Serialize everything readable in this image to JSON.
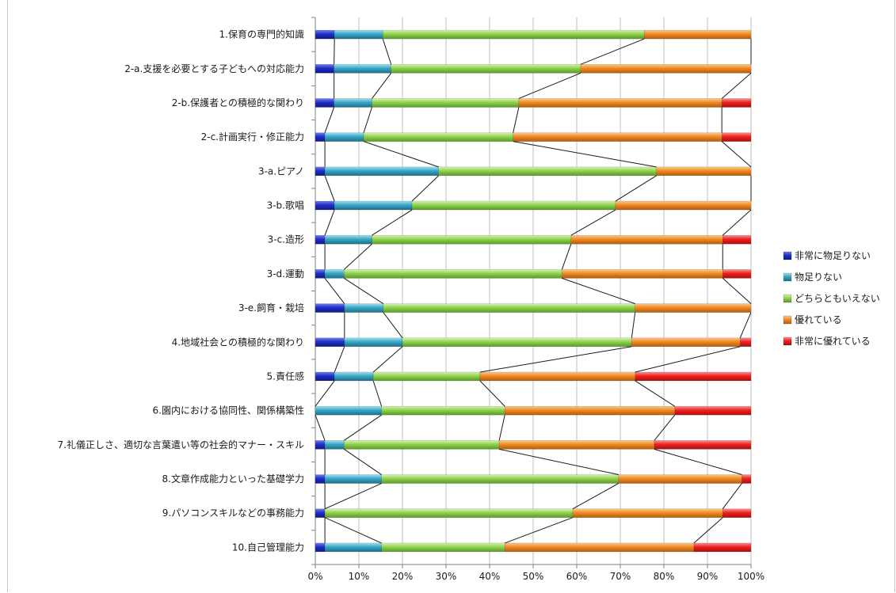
{
  "chart_data": {
    "type": "bar",
    "orientation": "horizontal",
    "stacked": "percent",
    "categories": [
      "1.保育の専門的知識",
      "2-a.支援を必要とする子どもへの対応能力",
      "2-b.保護者との積極的な関わり",
      "2-c.計画実行・修正能力",
      "3-a.ピアノ",
      "3-b.歌唱",
      "3-c.造形",
      "3-d.運動",
      "3-e.飼育・栽培",
      "4.地域社会との積極的な関わり",
      "5.責任感",
      "6.園内における協同性、関係構築性",
      "7.礼儀正しさ、適切な言葉遣い等の社会的マナー・スキル",
      "8.文章作成能力といった基礎学力",
      "9.パソコンスキルなどの事務能力",
      "10.自己管理能力"
    ],
    "series": [
      {
        "name": "非常に物足りない",
        "color": "#1f2fc8",
        "values": [
          4.4,
          4.3,
          4.3,
          2.2,
          2.2,
          4.4,
          2.2,
          2.2,
          6.7,
          6.7,
          4.4,
          0,
          2.2,
          2.2,
          2.2,
          2.2
        ]
      },
      {
        "name": "物足りない",
        "color": "#3aa6c4",
        "values": [
          11.1,
          13.1,
          8.7,
          8.9,
          26.1,
          17.8,
          10.8,
          4.4,
          8.9,
          13.3,
          8.9,
          15.2,
          4.4,
          13.0,
          0,
          13.0
        ]
      },
      {
        "name": "どちらともいえない",
        "color": "#8fd14f",
        "values": [
          60.0,
          43.5,
          33.7,
          34.3,
          50.0,
          46.7,
          45.7,
          50.0,
          57.8,
          52.6,
          24.5,
          28.3,
          35.6,
          54.4,
          56.9,
          28.3
        ]
      },
      {
        "name": "優れている",
        "color": "#f08a24",
        "values": [
          24.5,
          39.1,
          46.6,
          47.9,
          21.7,
          31.1,
          34.8,
          36.9,
          26.6,
          24.9,
          35.6,
          39.0,
          35.6,
          28.3,
          34.4,
          43.4
        ]
      },
      {
        "name": "非常に優れている",
        "color": "#ee2020",
        "values": [
          0,
          0,
          6.7,
          6.7,
          0,
          0,
          6.5,
          6.5,
          0,
          2.5,
          26.6,
          17.5,
          22.2,
          2.1,
          6.5,
          13.1
        ]
      }
    ],
    "xlim": [
      0,
      100
    ],
    "xticks": [
      "0%",
      "10%",
      "20%",
      "30%",
      "40%",
      "50%",
      "60%",
      "70%",
      "80%",
      "90%",
      "100%"
    ],
    "series_lines": true,
    "grid": "vertical",
    "legend": "right"
  }
}
